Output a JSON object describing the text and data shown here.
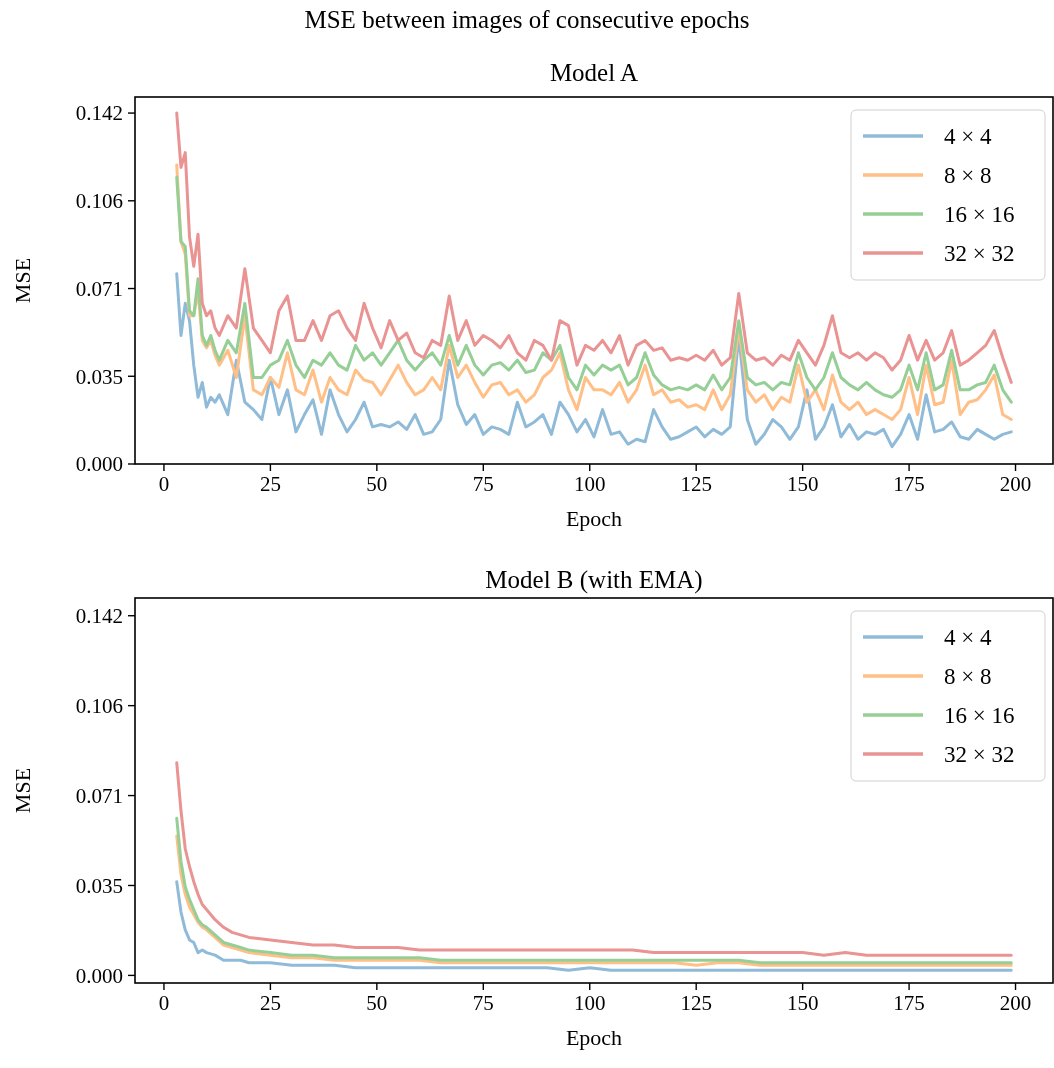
{
  "chart_data": [
    {
      "type": "line",
      "title": "MSE between images of consecutive epochs",
      "subtitle": "Model A",
      "xlabel": "Epoch",
      "ylabel": "MSE",
      "legend": "top right",
      "xlim": [
        -6.8,
        208.8
      ],
      "ylim": [
        0,
        0.1485
      ],
      "xticks": [
        0,
        25,
        50,
        75,
        100,
        125,
        150,
        175,
        200
      ],
      "yticks": [
        {
          "value": 0,
          "label": "0.000"
        },
        {
          "value": 0.0355,
          "label": "0.035"
        },
        {
          "value": 0.071,
          "label": "0.071"
        },
        {
          "value": 0.1065,
          "label": "0.106"
        },
        {
          "value": 0.142,
          "label": "0.142"
        }
      ],
      "x": [
        3,
        4,
        5,
        6,
        7,
        8,
        9,
        10,
        11,
        12,
        13,
        15,
        17,
        19,
        21,
        23,
        25,
        27,
        29,
        31,
        33,
        35,
        37,
        39,
        41,
        43,
        45,
        47,
        49,
        51,
        53,
        55,
        57,
        59,
        61,
        63,
        65,
        67,
        69,
        71,
        73,
        75,
        77,
        79,
        81,
        83,
        85,
        87,
        89,
        91,
        93,
        95,
        97,
        99,
        101,
        103,
        105,
        107,
        109,
        111,
        113,
        115,
        117,
        119,
        121,
        123,
        125,
        127,
        129,
        131,
        133,
        135,
        137,
        139,
        141,
        143,
        145,
        147,
        149,
        151,
        153,
        155,
        157,
        159,
        161,
        163,
        165,
        167,
        169,
        171,
        173,
        175,
        177,
        179,
        181,
        183,
        185,
        187,
        189,
        191,
        193,
        195,
        197,
        199
      ],
      "series": [
        {
          "name": "4 × 4",
          "color": "#8fbbd9",
          "values": [
            0.077,
            0.052,
            0.065,
            0.058,
            0.04,
            0.027,
            0.033,
            0.023,
            0.027,
            0.025,
            0.028,
            0.02,
            0.042,
            0.025,
            0.022,
            0.018,
            0.035,
            0.02,
            0.03,
            0.013,
            0.02,
            0.026,
            0.012,
            0.03,
            0.02,
            0.013,
            0.018,
            0.025,
            0.015,
            0.016,
            0.015,
            0.017,
            0.014,
            0.02,
            0.012,
            0.013,
            0.018,
            0.042,
            0.024,
            0.016,
            0.02,
            0.012,
            0.015,
            0.014,
            0.012,
            0.025,
            0.015,
            0.017,
            0.02,
            0.012,
            0.025,
            0.02,
            0.013,
            0.018,
            0.011,
            0.022,
            0.012,
            0.013,
            0.008,
            0.01,
            0.009,
            0.022,
            0.015,
            0.01,
            0.011,
            0.013,
            0.015,
            0.011,
            0.014,
            0.012,
            0.015,
            0.052,
            0.018,
            0.008,
            0.012,
            0.018,
            0.015,
            0.01,
            0.015,
            0.03,
            0.01,
            0.015,
            0.024,
            0.011,
            0.016,
            0.01,
            0.013,
            0.012,
            0.014,
            0.007,
            0.012,
            0.02,
            0.01,
            0.028,
            0.013,
            0.014,
            0.017,
            0.011,
            0.01,
            0.014,
            0.012,
            0.01,
            0.012,
            0.013
          ]
        },
        {
          "name": "8 × 8",
          "color": "#ffbf86",
          "values": [
            0.121,
            0.09,
            0.085,
            0.06,
            0.06,
            0.07,
            0.05,
            0.047,
            0.05,
            0.044,
            0.04,
            0.046,
            0.035,
            0.06,
            0.03,
            0.028,
            0.035,
            0.031,
            0.045,
            0.03,
            0.028,
            0.038,
            0.025,
            0.035,
            0.03,
            0.028,
            0.038,
            0.034,
            0.033,
            0.028,
            0.034,
            0.04,
            0.033,
            0.028,
            0.03,
            0.035,
            0.03,
            0.048,
            0.035,
            0.04,
            0.033,
            0.027,
            0.032,
            0.033,
            0.028,
            0.03,
            0.025,
            0.028,
            0.035,
            0.038,
            0.045,
            0.03,
            0.022,
            0.035,
            0.03,
            0.03,
            0.028,
            0.033,
            0.025,
            0.03,
            0.04,
            0.028,
            0.03,
            0.025,
            0.026,
            0.023,
            0.024,
            0.022,
            0.03,
            0.022,
            0.028,
            0.055,
            0.03,
            0.025,
            0.028,
            0.022,
            0.027,
            0.025,
            0.04,
            0.025,
            0.03,
            0.022,
            0.036,
            0.025,
            0.022,
            0.025,
            0.02,
            0.022,
            0.02,
            0.018,
            0.022,
            0.035,
            0.02,
            0.04,
            0.024,
            0.025,
            0.042,
            0.02,
            0.025,
            0.026,
            0.03,
            0.036,
            0.02,
            0.018
          ]
        },
        {
          "name": "16 × 16",
          "color": "#95cf95",
          "values": [
            0.116,
            0.09,
            0.088,
            0.062,
            0.06,
            0.075,
            0.052,
            0.048,
            0.052,
            0.046,
            0.042,
            0.05,
            0.045,
            0.065,
            0.035,
            0.035,
            0.04,
            0.042,
            0.05,
            0.04,
            0.035,
            0.042,
            0.04,
            0.045,
            0.04,
            0.038,
            0.048,
            0.042,
            0.045,
            0.04,
            0.045,
            0.05,
            0.042,
            0.038,
            0.042,
            0.045,
            0.04,
            0.052,
            0.04,
            0.048,
            0.04,
            0.036,
            0.04,
            0.041,
            0.038,
            0.042,
            0.037,
            0.038,
            0.045,
            0.042,
            0.048,
            0.035,
            0.03,
            0.04,
            0.036,
            0.04,
            0.038,
            0.04,
            0.032,
            0.035,
            0.045,
            0.036,
            0.032,
            0.03,
            0.031,
            0.03,
            0.032,
            0.03,
            0.036,
            0.03,
            0.035,
            0.058,
            0.035,
            0.032,
            0.033,
            0.03,
            0.033,
            0.032,
            0.045,
            0.035,
            0.03,
            0.035,
            0.045,
            0.035,
            0.032,
            0.03,
            0.033,
            0.03,
            0.028,
            0.027,
            0.03,
            0.04,
            0.03,
            0.045,
            0.03,
            0.032,
            0.046,
            0.03,
            0.03,
            0.032,
            0.033,
            0.04,
            0.03,
            0.025
          ]
        },
        {
          "name": "32 × 32",
          "color": "#ea9393",
          "values": [
            0.142,
            0.12,
            0.126,
            0.092,
            0.08,
            0.093,
            0.065,
            0.06,
            0.062,
            0.055,
            0.052,
            0.06,
            0.055,
            0.079,
            0.055,
            0.05,
            0.045,
            0.062,
            0.068,
            0.05,
            0.05,
            0.058,
            0.05,
            0.06,
            0.062,
            0.055,
            0.05,
            0.065,
            0.055,
            0.047,
            0.058,
            0.05,
            0.053,
            0.045,
            0.043,
            0.05,
            0.048,
            0.068,
            0.05,
            0.058,
            0.048,
            0.052,
            0.05,
            0.047,
            0.052,
            0.045,
            0.042,
            0.05,
            0.048,
            0.042,
            0.058,
            0.056,
            0.04,
            0.048,
            0.046,
            0.05,
            0.045,
            0.052,
            0.04,
            0.048,
            0.05,
            0.046,
            0.047,
            0.042,
            0.043,
            0.042,
            0.044,
            0.042,
            0.046,
            0.04,
            0.043,
            0.069,
            0.045,
            0.042,
            0.043,
            0.04,
            0.044,
            0.042,
            0.05,
            0.045,
            0.04,
            0.048,
            0.06,
            0.045,
            0.043,
            0.045,
            0.042,
            0.045,
            0.043,
            0.038,
            0.042,
            0.052,
            0.042,
            0.05,
            0.042,
            0.045,
            0.054,
            0.04,
            0.042,
            0.045,
            0.048,
            0.054,
            0.043,
            0.033
          ]
        }
      ]
    },
    {
      "type": "line",
      "title": "Model B (with EMA)",
      "xlabel": "Epoch",
      "ylabel": "MSE",
      "legend": "top right",
      "xlim": [
        -6.8,
        208.8
      ],
      "ylim": [
        -0.003,
        0.149
      ],
      "xticks": [
        0,
        25,
        50,
        75,
        100,
        125,
        150,
        175,
        200
      ],
      "yticks": [
        {
          "value": 0,
          "label": "0.000"
        },
        {
          "value": 0.0355,
          "label": "0.035"
        },
        {
          "value": 0.071,
          "label": "0.071"
        },
        {
          "value": 0.1065,
          "label": "0.106"
        },
        {
          "value": 0.142,
          "label": "0.142"
        }
      ],
      "x": [
        3,
        4,
        5,
        6,
        7,
        8,
        9,
        10,
        12,
        14,
        16,
        18,
        20,
        25,
        30,
        35,
        40,
        45,
        50,
        55,
        60,
        65,
        70,
        75,
        80,
        85,
        90,
        95,
        100,
        105,
        110,
        115,
        120,
        125,
        130,
        135,
        140,
        145,
        150,
        155,
        160,
        165,
        170,
        175,
        180,
        185,
        190,
        195,
        199
      ],
      "series": [
        {
          "name": "4 × 4",
          "color": "#8fbbd9",
          "values": [
            0.037,
            0.025,
            0.018,
            0.014,
            0.013,
            0.009,
            0.01,
            0.009,
            0.008,
            0.006,
            0.006,
            0.006,
            0.005,
            0.005,
            0.004,
            0.004,
            0.004,
            0.003,
            0.003,
            0.003,
            0.003,
            0.003,
            0.003,
            0.003,
            0.003,
            0.003,
            0.003,
            0.002,
            0.003,
            0.002,
            0.002,
            0.002,
            0.002,
            0.002,
            0.002,
            0.002,
            0.002,
            0.002,
            0.002,
            0.002,
            0.002,
            0.002,
            0.002,
            0.002,
            0.002,
            0.002,
            0.002,
            0.002,
            0.002
          ]
        },
        {
          "name": "8 × 8",
          "color": "#ffbf86",
          "values": [
            0.055,
            0.04,
            0.032,
            0.027,
            0.024,
            0.021,
            0.019,
            0.018,
            0.015,
            0.012,
            0.011,
            0.01,
            0.009,
            0.008,
            0.007,
            0.007,
            0.006,
            0.006,
            0.006,
            0.006,
            0.006,
            0.005,
            0.005,
            0.005,
            0.005,
            0.005,
            0.005,
            0.005,
            0.005,
            0.005,
            0.005,
            0.005,
            0.005,
            0.004,
            0.005,
            0.005,
            0.004,
            0.004,
            0.004,
            0.004,
            0.004,
            0.004,
            0.004,
            0.004,
            0.004,
            0.004,
            0.004,
            0.004,
            0.004
          ]
        },
        {
          "name": "16 × 16",
          "color": "#95cf95",
          "values": [
            0.062,
            0.045,
            0.035,
            0.03,
            0.026,
            0.022,
            0.02,
            0.019,
            0.016,
            0.013,
            0.012,
            0.011,
            0.01,
            0.009,
            0.008,
            0.008,
            0.007,
            0.007,
            0.007,
            0.007,
            0.007,
            0.006,
            0.006,
            0.006,
            0.006,
            0.006,
            0.006,
            0.006,
            0.006,
            0.006,
            0.006,
            0.006,
            0.006,
            0.006,
            0.006,
            0.006,
            0.005,
            0.005,
            0.005,
            0.005,
            0.005,
            0.005,
            0.005,
            0.005,
            0.005,
            0.005,
            0.005,
            0.005,
            0.005
          ]
        },
        {
          "name": "32 × 32",
          "color": "#ea9393",
          "values": [
            0.084,
            0.065,
            0.05,
            0.043,
            0.037,
            0.032,
            0.028,
            0.026,
            0.022,
            0.019,
            0.017,
            0.016,
            0.015,
            0.014,
            0.013,
            0.012,
            0.012,
            0.011,
            0.011,
            0.011,
            0.01,
            0.01,
            0.01,
            0.01,
            0.01,
            0.01,
            0.01,
            0.01,
            0.01,
            0.01,
            0.01,
            0.009,
            0.009,
            0.009,
            0.009,
            0.009,
            0.009,
            0.009,
            0.009,
            0.008,
            0.009,
            0.008,
            0.008,
            0.008,
            0.008,
            0.008,
            0.008,
            0.008,
            0.008
          ]
        }
      ]
    }
  ]
}
